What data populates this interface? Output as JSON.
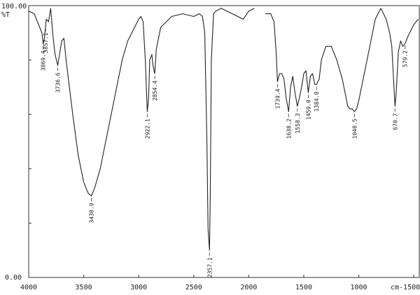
{
  "chart_data": {
    "type": "line",
    "title": "",
    "xlabel": "",
    "ylabel": "",
    "y_unit_label": "%T",
    "x_unit_label": "cm-1",
    "x_reversed": true,
    "xlim": [
      4000,
      450
    ],
    "ylim": [
      0,
      100
    ],
    "y_tick_labels": [
      "100.00",
      "0.00"
    ],
    "x_ticks": [
      4000,
      3500,
      3000,
      2500,
      2000,
      1500,
      1000,
      500
    ],
    "x_tick_labels": [
      "4000",
      "3500",
      "3000",
      "2500",
      "2000",
      "1500",
      "1000",
      "500"
    ],
    "grid": false,
    "series": [
      {
        "name": "",
        "x": [
          4000,
          3950,
          3900,
          3880,
          3869,
          3860,
          3850,
          3840,
          3820,
          3800,
          3780,
          3760,
          3736,
          3720,
          3700,
          3680,
          3660,
          3600,
          3550,
          3500,
          3460,
          3430,
          3400,
          3350,
          3300,
          3250,
          3200,
          3150,
          3100,
          3050,
          3000,
          2980,
          2960,
          2940,
          2922,
          2910,
          2900,
          2880,
          2870,
          2854,
          2840,
          2800,
          2700,
          2600,
          2500,
          2450,
          2420,
          2400,
          2380,
          2370,
          2357,
          2350,
          2340,
          2320,
          2300,
          2250,
          2200,
          2150,
          2100,
          2050,
          2000,
          1950,
          1850,
          1800,
          1770,
          1750,
          1739,
          1720,
          1700,
          1680,
          1660,
          1638,
          1620,
          1600,
          1580,
          1558,
          1540,
          1520,
          1500,
          1480,
          1459,
          1440,
          1420,
          1400,
          1384,
          1360,
          1340,
          1300,
          1250,
          1200,
          1150,
          1100,
          1080,
          1060,
          1040,
          1020,
          1000,
          950,
          900,
          850,
          800,
          750,
          720,
          700,
          680,
          671,
          660,
          640,
          620,
          600,
          580,
          550,
          500,
          460
        ],
        "values": [
          98,
          97,
          92,
          90,
          86,
          87,
          91,
          95,
          94,
          99,
          89,
          82,
          78,
          82,
          87,
          88,
          80,
          60,
          45,
          35,
          31,
          30,
          33,
          40,
          50,
          60,
          70,
          80,
          87,
          91,
          95,
          96,
          94,
          80,
          61,
          66,
          80,
          82,
          78,
          75,
          84,
          92,
          96,
          97,
          96,
          97,
          96,
          90,
          50,
          18,
          10,
          30,
          80,
          97,
          98,
          99,
          98,
          97,
          96,
          95,
          98,
          99,
          97,
          97,
          94,
          82,
          72,
          75,
          75,
          73,
          66,
          61,
          70,
          74,
          68,
          63,
          66,
          70,
          75,
          76,
          68,
          74,
          75,
          71,
          71,
          73,
          80,
          85,
          85,
          80,
          73,
          63,
          62,
          62,
          61,
          62,
          65,
          75,
          85,
          95,
          99,
          95,
          90,
          85,
          70,
          63,
          68,
          83,
          87,
          85,
          86,
          89,
          93,
          95
        ]
      }
    ],
    "annotations": [
      {
        "label": "3869.4",
        "x": 3869
      },
      {
        "label": "3857.1",
        "x": 3846
      },
      {
        "label": "3736.6",
        "x": 3736
      },
      {
        "label": "3430.9",
        "x": 3431
      },
      {
        "label": "2922.1",
        "x": 2922
      },
      {
        "label": "2854.4",
        "x": 2854
      },
      {
        "label": "2357.1",
        "x": 2357
      },
      {
        "label": "1739.4",
        "x": 1739
      },
      {
        "label": "1638.2",
        "x": 1638
      },
      {
        "label": "1558.3",
        "x": 1558
      },
      {
        "label": "1459.0",
        "x": 1459
      },
      {
        "label": "1384.0",
        "x": 1384
      },
      {
        "label": "1040.5",
        "x": 1040
      },
      {
        "label": "670.7",
        "x": 671
      },
      {
        "label": "579.2",
        "x": 579
      }
    ]
  }
}
